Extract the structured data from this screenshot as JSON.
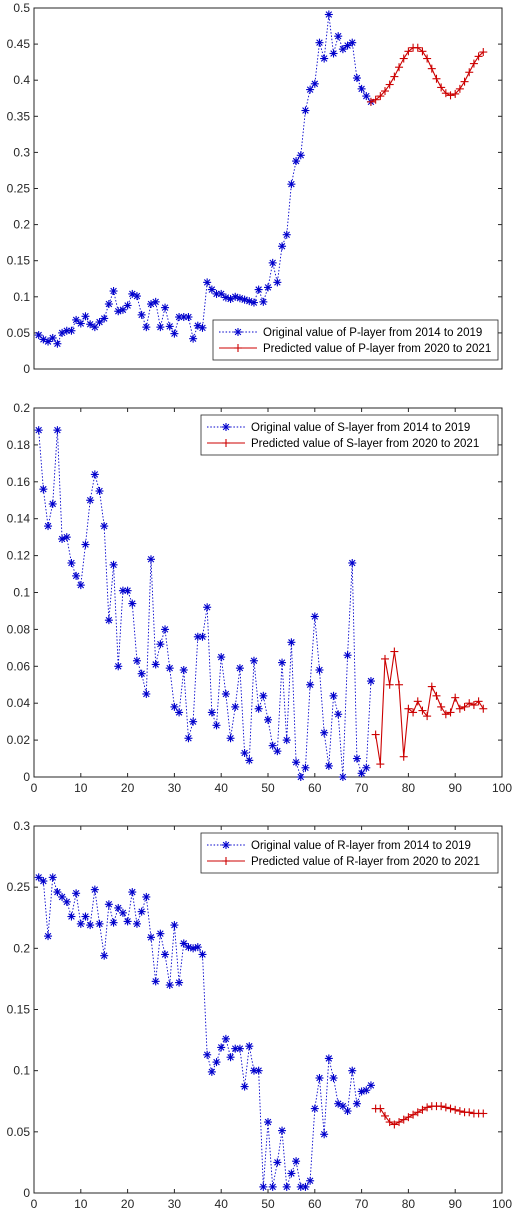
{
  "chart_data": [
    {
      "type": "line",
      "xlim": [
        0,
        100
      ],
      "ylim": [
        0,
        0.5
      ],
      "yticks": [
        0,
        0.05,
        0.1,
        0.15,
        0.2,
        0.25,
        0.3,
        0.35,
        0.4,
        0.45,
        0.5
      ],
      "ytick_labels": [
        "0",
        "0.05",
        "0.1",
        "0.15",
        "0.2",
        "0.25",
        "0.3",
        "0.35",
        "0.4",
        "0.45",
        "0.5"
      ],
      "xticks": [],
      "xtick_labels": [],
      "grid": false,
      "legend_position": "bottom-right",
      "series": [
        {
          "name": "Original value of P-layer from 2014 to 2019",
          "color": "#0000cc",
          "marker": "asterisk",
          "line_style": "dotted",
          "x": [
            1,
            2,
            3,
            4,
            5,
            6,
            7,
            8,
            9,
            10,
            11,
            12,
            13,
            14,
            15,
            16,
            17,
            18,
            19,
            20,
            21,
            22,
            23,
            24,
            25,
            26,
            27,
            28,
            29,
            30,
            31,
            32,
            33,
            34,
            35,
            36,
            37,
            38,
            39,
            40,
            41,
            42,
            43,
            44,
            45,
            46,
            47,
            48,
            49,
            50,
            51,
            52,
            53,
            54,
            55,
            56,
            57,
            58,
            59,
            60,
            61,
            62,
            63,
            64,
            65,
            66,
            67,
            68,
            69,
            70,
            71,
            72
          ],
          "y": [
            0.047,
            0.041,
            0.038,
            0.043,
            0.035,
            0.05,
            0.053,
            0.053,
            0.068,
            0.063,
            0.073,
            0.062,
            0.058,
            0.065,
            0.07,
            0.09,
            0.108,
            0.08,
            0.082,
            0.088,
            0.104,
            0.101,
            0.075,
            0.058,
            0.09,
            0.093,
            0.058,
            0.085,
            0.059,
            0.049,
            0.072,
            0.072,
            0.072,
            0.042,
            0.06,
            0.057,
            0.12,
            0.11,
            0.104,
            0.104,
            0.099,
            0.097,
            0.1,
            0.098,
            0.096,
            0.094,
            0.092,
            0.11,
            0.093,
            0.113,
            0.147,
            0.12,
            0.17,
            0.186,
            0.256,
            0.288,
            0.296,
            0.358,
            0.387,
            0.395,
            0.452,
            0.43,
            0.491,
            0.437,
            0.461,
            0.443,
            0.448,
            0.452,
            0.403,
            0.388,
            0.378,
            0.37
          ]
        },
        {
          "name": "Predicted value of P-layer from 2020 to 2021",
          "color": "#cc0000",
          "marker": "plus",
          "line_style": "solid",
          "x": [
            72,
            73,
            74,
            75,
            76,
            77,
            78,
            79,
            80,
            81,
            82,
            83,
            84,
            85,
            86,
            87,
            88,
            89,
            90,
            91,
            92,
            93,
            94,
            95,
            96
          ],
          "y": [
            0.37,
            0.373,
            0.378,
            0.385,
            0.394,
            0.405,
            0.418,
            0.43,
            0.44,
            0.445,
            0.445,
            0.44,
            0.43,
            0.416,
            0.402,
            0.39,
            0.382,
            0.379,
            0.381,
            0.388,
            0.398,
            0.411,
            0.423,
            0.433,
            0.439
          ]
        }
      ]
    },
    {
      "type": "line",
      "xlim": [
        0,
        100
      ],
      "ylim": [
        0,
        0.2
      ],
      "yticks": [
        0,
        0.02,
        0.04,
        0.06,
        0.08,
        0.1,
        0.12,
        0.14,
        0.16,
        0.18,
        0.2
      ],
      "ytick_labels": [
        "0",
        "0.02",
        "0.04",
        "0.06",
        "0.08",
        "0.1",
        "0.12",
        "0.14",
        "0.16",
        "0.18",
        "0.2"
      ],
      "xticks": [
        0,
        10,
        20,
        30,
        40,
        50,
        60,
        70,
        80,
        90,
        100
      ],
      "xtick_labels": [
        "0",
        "10",
        "20",
        "30",
        "40",
        "50",
        "60",
        "70",
        "80",
        "90",
        "100"
      ],
      "grid": false,
      "legend_position": "top-right",
      "series": [
        {
          "name": "Original value of S-layer from 2014 to 2019",
          "color": "#0000cc",
          "marker": "asterisk",
          "line_style": "dotted",
          "x": [
            1,
            2,
            3,
            4,
            5,
            6,
            7,
            8,
            9,
            10,
            11,
            12,
            13,
            14,
            15,
            16,
            17,
            18,
            19,
            20,
            21,
            22,
            23,
            24,
            25,
            26,
            27,
            28,
            29,
            30,
            31,
            32,
            33,
            34,
            35,
            36,
            37,
            38,
            39,
            40,
            41,
            42,
            43,
            44,
            45,
            46,
            47,
            48,
            49,
            50,
            51,
            52,
            53,
            54,
            55,
            56,
            57,
            58,
            59,
            60,
            61,
            62,
            63,
            64,
            65,
            66,
            67,
            68,
            69,
            70,
            71,
            72
          ],
          "y": [
            0.188,
            0.156,
            0.136,
            0.148,
            0.188,
            0.129,
            0.13,
            0.116,
            0.109,
            0.104,
            0.126,
            0.15,
            0.164,
            0.155,
            0.136,
            0.085,
            0.115,
            0.06,
            0.101,
            0.101,
            0.094,
            0.063,
            0.056,
            0.045,
            0.118,
            0.061,
            0.072,
            0.08,
            0.059,
            0.038,
            0.035,
            0.058,
            0.021,
            0.03,
            0.076,
            0.076,
            0.092,
            0.035,
            0.028,
            0.065,
            0.045,
            0.021,
            0.038,
            0.059,
            0.013,
            0.009,
            0.063,
            0.037,
            0.044,
            0.031,
            0.017,
            0.014,
            0.062,
            0.02,
            0.073,
            0.008,
            0.0,
            0.005,
            0.05,
            0.087,
            0.058,
            0.024,
            0.006,
            0.044,
            0.034,
            0.0,
            0.066,
            0.116,
            0.01,
            0.002,
            0.005,
            0.052
          ]
        },
        {
          "name": "Predicted value of S-layer from 2020 to 2021",
          "color": "#cc0000",
          "marker": "plus",
          "line_style": "solid",
          "x": [
            73,
            74,
            75,
            76,
            77,
            78,
            79,
            80,
            81,
            82,
            83,
            84,
            85,
            86,
            87,
            88,
            89,
            90,
            91,
            92,
            93,
            94,
            95,
            96
          ],
          "y": [
            0.023,
            0.007,
            0.064,
            0.05,
            0.068,
            0.05,
            0.011,
            0.037,
            0.035,
            0.041,
            0.036,
            0.033,
            0.049,
            0.044,
            0.038,
            0.034,
            0.035,
            0.043,
            0.037,
            0.038,
            0.04,
            0.039,
            0.041,
            0.037
          ]
        }
      ]
    },
    {
      "type": "line",
      "xlim": [
        0,
        100
      ],
      "ylim": [
        0,
        0.3
      ],
      "yticks": [
        0,
        0.05,
        0.1,
        0.15,
        0.2,
        0.25,
        0.3
      ],
      "ytick_labels": [
        "0",
        "0.05",
        "0.1",
        "0.15",
        "0.2",
        "0.25",
        "0.3"
      ],
      "xticks": [
        0,
        10,
        20,
        30,
        40,
        50,
        60,
        70,
        80,
        90,
        100
      ],
      "xtick_labels": [
        "0",
        "10",
        "20",
        "30",
        "40",
        "50",
        "60",
        "70",
        "80",
        "90",
        "100"
      ],
      "grid": false,
      "legend_position": "top-right",
      "series": [
        {
          "name": "Original value of R-layer from 2014 to 2019",
          "color": "#0000cc",
          "marker": "asterisk",
          "line_style": "dotted",
          "x": [
            1,
            2,
            3,
            4,
            5,
            6,
            7,
            8,
            9,
            10,
            11,
            12,
            13,
            14,
            15,
            16,
            17,
            18,
            19,
            20,
            21,
            22,
            23,
            24,
            25,
            26,
            27,
            28,
            29,
            30,
            31,
            32,
            33,
            34,
            35,
            36,
            37,
            38,
            39,
            40,
            41,
            42,
            43,
            44,
            45,
            46,
            47,
            48,
            49,
            50,
            51,
            52,
            53,
            54,
            55,
            56,
            57,
            58,
            59,
            60,
            61,
            62,
            63,
            64,
            65,
            66,
            67,
            68,
            69,
            70,
            71,
            72
          ],
          "y": [
            0.258,
            0.255,
            0.21,
            0.258,
            0.246,
            0.242,
            0.238,
            0.226,
            0.245,
            0.22,
            0.226,
            0.219,
            0.248,
            0.22,
            0.194,
            0.236,
            0.221,
            0.233,
            0.229,
            0.222,
            0.246,
            0.22,
            0.23,
            0.242,
            0.209,
            0.173,
            0.212,
            0.195,
            0.17,
            0.219,
            0.172,
            0.204,
            0.201,
            0.2,
            0.201,
            0.195,
            0.113,
            0.099,
            0.107,
            0.119,
            0.126,
            0.111,
            0.118,
            0.118,
            0.087,
            0.12,
            0.1,
            0.1,
            0.005,
            0.058,
            0.005,
            0.025,
            0.051,
            0.005,
            0.016,
            0.026,
            0.005,
            0.005,
            0.01,
            0.069,
            0.094,
            0.048,
            0.11,
            0.094,
            0.073,
            0.071,
            0.067,
            0.1,
            0.073,
            0.083,
            0.084,
            0.088
          ]
        },
        {
          "name": "Predicted value of R-layer from 2020 to 2021",
          "color": "#cc0000",
          "marker": "plus",
          "line_style": "solid",
          "x": [
            73,
            74,
            75,
            76,
            77,
            78,
            79,
            80,
            81,
            82,
            83,
            84,
            85,
            86,
            87,
            88,
            89,
            90,
            91,
            92,
            93,
            94,
            95,
            96
          ],
          "y": [
            0.069,
            0.069,
            0.063,
            0.058,
            0.056,
            0.058,
            0.06,
            0.062,
            0.064,
            0.066,
            0.068,
            0.07,
            0.071,
            0.071,
            0.071,
            0.07,
            0.069,
            0.068,
            0.067,
            0.066,
            0.066,
            0.065,
            0.065,
            0.065
          ]
        }
      ]
    }
  ]
}
